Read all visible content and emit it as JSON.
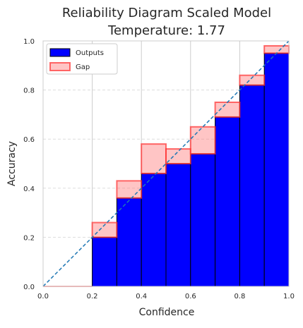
{
  "chart_data": {
    "type": "bar",
    "title_line1": "Reliability Diagram Scaled Model",
    "title_line2": "Temperature: 1.77",
    "xlabel": "Confidence",
    "ylabel": "Accuracy",
    "xlim": [
      0.0,
      1.0
    ],
    "ylim": [
      0.0,
      1.0
    ],
    "xticks": [
      "0.0",
      "0.2",
      "0.4",
      "0.6",
      "0.8",
      "1.0"
    ],
    "yticks": [
      "0.0",
      "0.2",
      "0.4",
      "0.6",
      "0.8",
      "1.0"
    ],
    "xgrid": true,
    "ygrid": "dashed",
    "legend_position": "top-left",
    "legend": {
      "outputs_label": "Outputs",
      "gap_label": "Gap"
    },
    "bin_width": 0.1,
    "bins": [
      0.2,
      0.3,
      0.4,
      0.5,
      0.6,
      0.7,
      0.8,
      0.9
    ],
    "outputs": [
      0.2,
      0.36,
      0.46,
      0.5,
      0.54,
      0.69,
      0.82,
      0.95
    ],
    "gap_expected": [
      0.26,
      0.43,
      0.58,
      0.56,
      0.65,
      0.75,
      0.86,
      0.98
    ],
    "diagonal": true,
    "colors": {
      "outputs_fill": "#0000ff",
      "outputs_edge": "#000000",
      "gap_fill": "#ff6f6f",
      "gap_edge": "#ff3030",
      "gap_alpha": 0.4,
      "diagonal": "#1f77b4",
      "grid": "#dddddd"
    }
  }
}
